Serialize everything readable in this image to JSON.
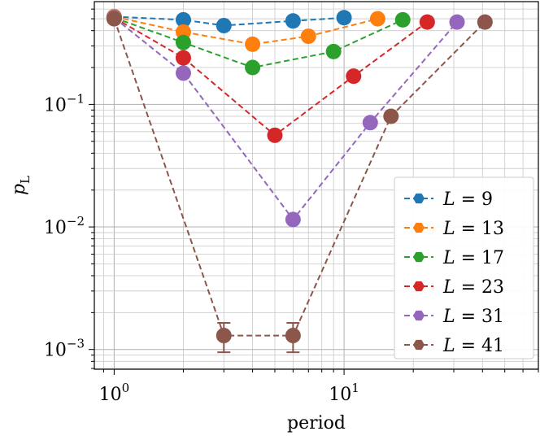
{
  "chart_data": {
    "type": "line",
    "title": "",
    "xlabel": "period",
    "ylabel": "p_L",
    "xscale": "log",
    "yscale": "log",
    "xlim": [
      0.82,
      70
    ],
    "ylim": [
      0.00069,
      0.69
    ],
    "x_major_ticks": [
      1,
      10
    ],
    "x_tick_labels": [
      {
        "base": "10",
        "exp": "0"
      },
      {
        "base": "10",
        "exp": "1"
      }
    ],
    "y_major_ticks": [
      0.001,
      0.01,
      0.1
    ],
    "y_tick_labels": [
      {
        "base": "10",
        "exp": "−3"
      },
      {
        "base": "10",
        "exp": "−2"
      },
      {
        "base": "10",
        "exp": "−1"
      }
    ],
    "grid": true,
    "legend_position": "lower-right",
    "series": [
      {
        "name": "L = 9",
        "var": "L",
        "value": "9",
        "color": "#1f77b4",
        "x": [
          1,
          2,
          3,
          6,
          10
        ],
        "y": [
          0.52,
          0.49,
          0.44,
          0.48,
          0.51
        ]
      },
      {
        "name": "L = 13",
        "var": "L",
        "value": "13",
        "color": "#ff7f0e",
        "x": [
          1,
          2,
          4,
          7,
          14
        ],
        "y": [
          0.52,
          0.39,
          0.31,
          0.36,
          0.5
        ]
      },
      {
        "name": "L = 17",
        "var": "L",
        "value": "17",
        "color": "#2ca02c",
        "x": [
          1,
          2,
          4,
          9,
          18
        ],
        "y": [
          0.51,
          0.32,
          0.2,
          0.27,
          0.49
        ]
      },
      {
        "name": "L = 23",
        "var": "L",
        "value": "23",
        "color": "#d62728",
        "x": [
          1,
          2,
          5,
          11,
          23
        ],
        "y": [
          0.51,
          0.24,
          0.056,
          0.17,
          0.47
        ]
      },
      {
        "name": "L = 31",
        "var": "L",
        "value": "31",
        "color": "#9467bd",
        "x": [
          1,
          2,
          6,
          13,
          31
        ],
        "y": [
          0.51,
          0.18,
          0.0115,
          0.071,
          0.47
        ]
      },
      {
        "name": "L = 41",
        "var": "L",
        "value": "41",
        "color": "#8c564b",
        "x": [
          1,
          3,
          6,
          16,
          41
        ],
        "y": [
          0.5,
          0.0013,
          0.0013,
          0.08,
          0.47
        ],
        "yerr_low": [
          0,
          0.00035,
          0.00035,
          0,
          0
        ],
        "yerr_high": [
          0,
          0.00035,
          0.00035,
          0,
          0
        ]
      }
    ]
  }
}
